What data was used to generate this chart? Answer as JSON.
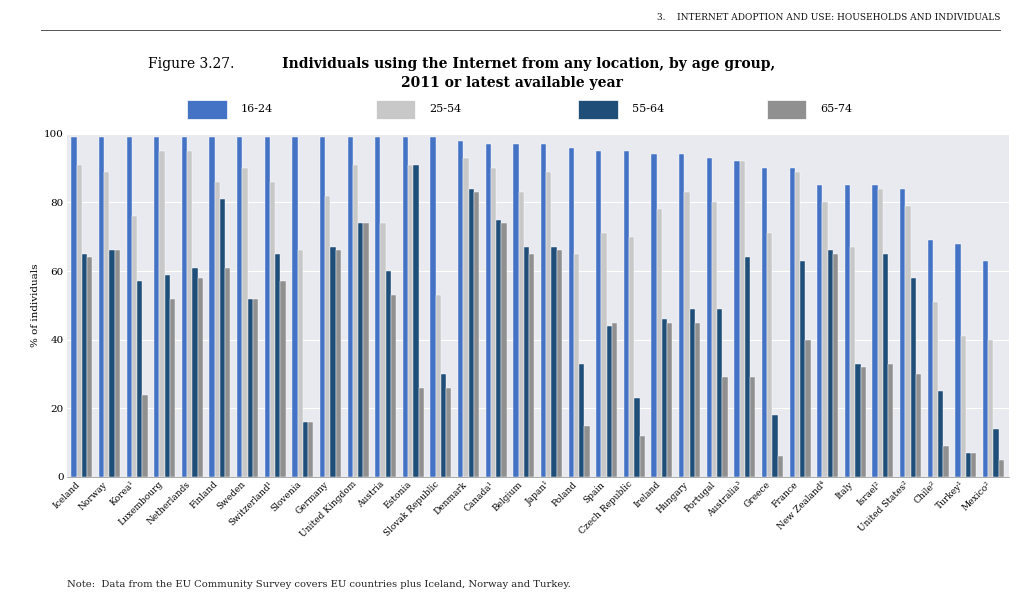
{
  "header": "3.    INTERNET ADOPTION AND USE: HOUSEHOLDS AND INDIVIDUALS",
  "title_normal": "Figure 3.27.",
  "title_bold_line1": "Individuals using the Internet from any location, by age group,",
  "title_bold_line2": "2011 or latest available year",
  "ylabel": "% of individuals",
  "note": "Note:  Data from the EU Community Survey covers EU countries plus Iceland, Norway and Turkey.",
  "legend_labels": [
    "16-24",
    "25-54",
    "55-64",
    "65-74"
  ],
  "colors": [
    "#4472C4",
    "#C0C0C0",
    "#4472C4",
    "#A0A0A0"
  ],
  "legend_colors": [
    "#4472C4",
    "#D0D0D0",
    "#1F4E79",
    "#909090"
  ],
  "countries": [
    "Iceland",
    "Norway",
    "Korea¹",
    "Luxembourg",
    "Netherlands",
    "Finland",
    "Sweden",
    "Switzerland¹",
    "Slovenia",
    "Germany",
    "United Kingdom",
    "Austria",
    "Estonia",
    "Slovak Republic",
    "Denmark",
    "Canada¹",
    "Belgium",
    "Japan¹",
    "Poland",
    "Spain",
    "Czech Republic",
    "Ireland",
    "Hungary",
    "Portugal",
    "Australia³",
    "Greece",
    "France",
    "New Zealand⁴",
    "Italy",
    "Israel²",
    "United States²",
    "Chile²",
    "Turkey¹",
    "Mexico²"
  ],
  "data_16_24": [
    99,
    99,
    99,
    99,
    99,
    99,
    99,
    99,
    99,
    99,
    99,
    99,
    99,
    99,
    98,
    97,
    97,
    97,
    96,
    95,
    95,
    94,
    94,
    93,
    92,
    90,
    90,
    85,
    85,
    85,
    84,
    69,
    68,
    63
  ],
  "data_25_54": [
    91,
    89,
    76,
    95,
    95,
    86,
    90,
    86,
    66,
    82,
    91,
    74,
    91,
    53,
    93,
    90,
    83,
    89,
    65,
    71,
    70,
    78,
    83,
    80,
    92,
    71,
    89,
    80,
    67,
    84,
    79,
    51,
    41,
    40
  ],
  "data_55_64": [
    65,
    66,
    57,
    59,
    61,
    81,
    52,
    65,
    16,
    67,
    74,
    60,
    91,
    30,
    84,
    75,
    67,
    67,
    33,
    44,
    23,
    46,
    49,
    49,
    64,
    18,
    63,
    66,
    33,
    65,
    58,
    25,
    7,
    14
  ],
  "data_65_74": [
    64,
    66,
    24,
    52,
    58,
    61,
    52,
    57,
    16,
    66,
    74,
    53,
    26,
    26,
    83,
    74,
    65,
    66,
    15,
    45,
    12,
    45,
    45,
    29,
    29,
    6,
    40,
    65,
    32,
    33,
    30,
    9,
    7,
    5
  ],
  "ylim": [
    0,
    100
  ],
  "yticks": [
    0,
    20,
    40,
    60,
    80,
    100
  ],
  "plot_bg": "#E8EAF0",
  "legend_bg": "#D4D4D4",
  "bar_width": 0.19
}
